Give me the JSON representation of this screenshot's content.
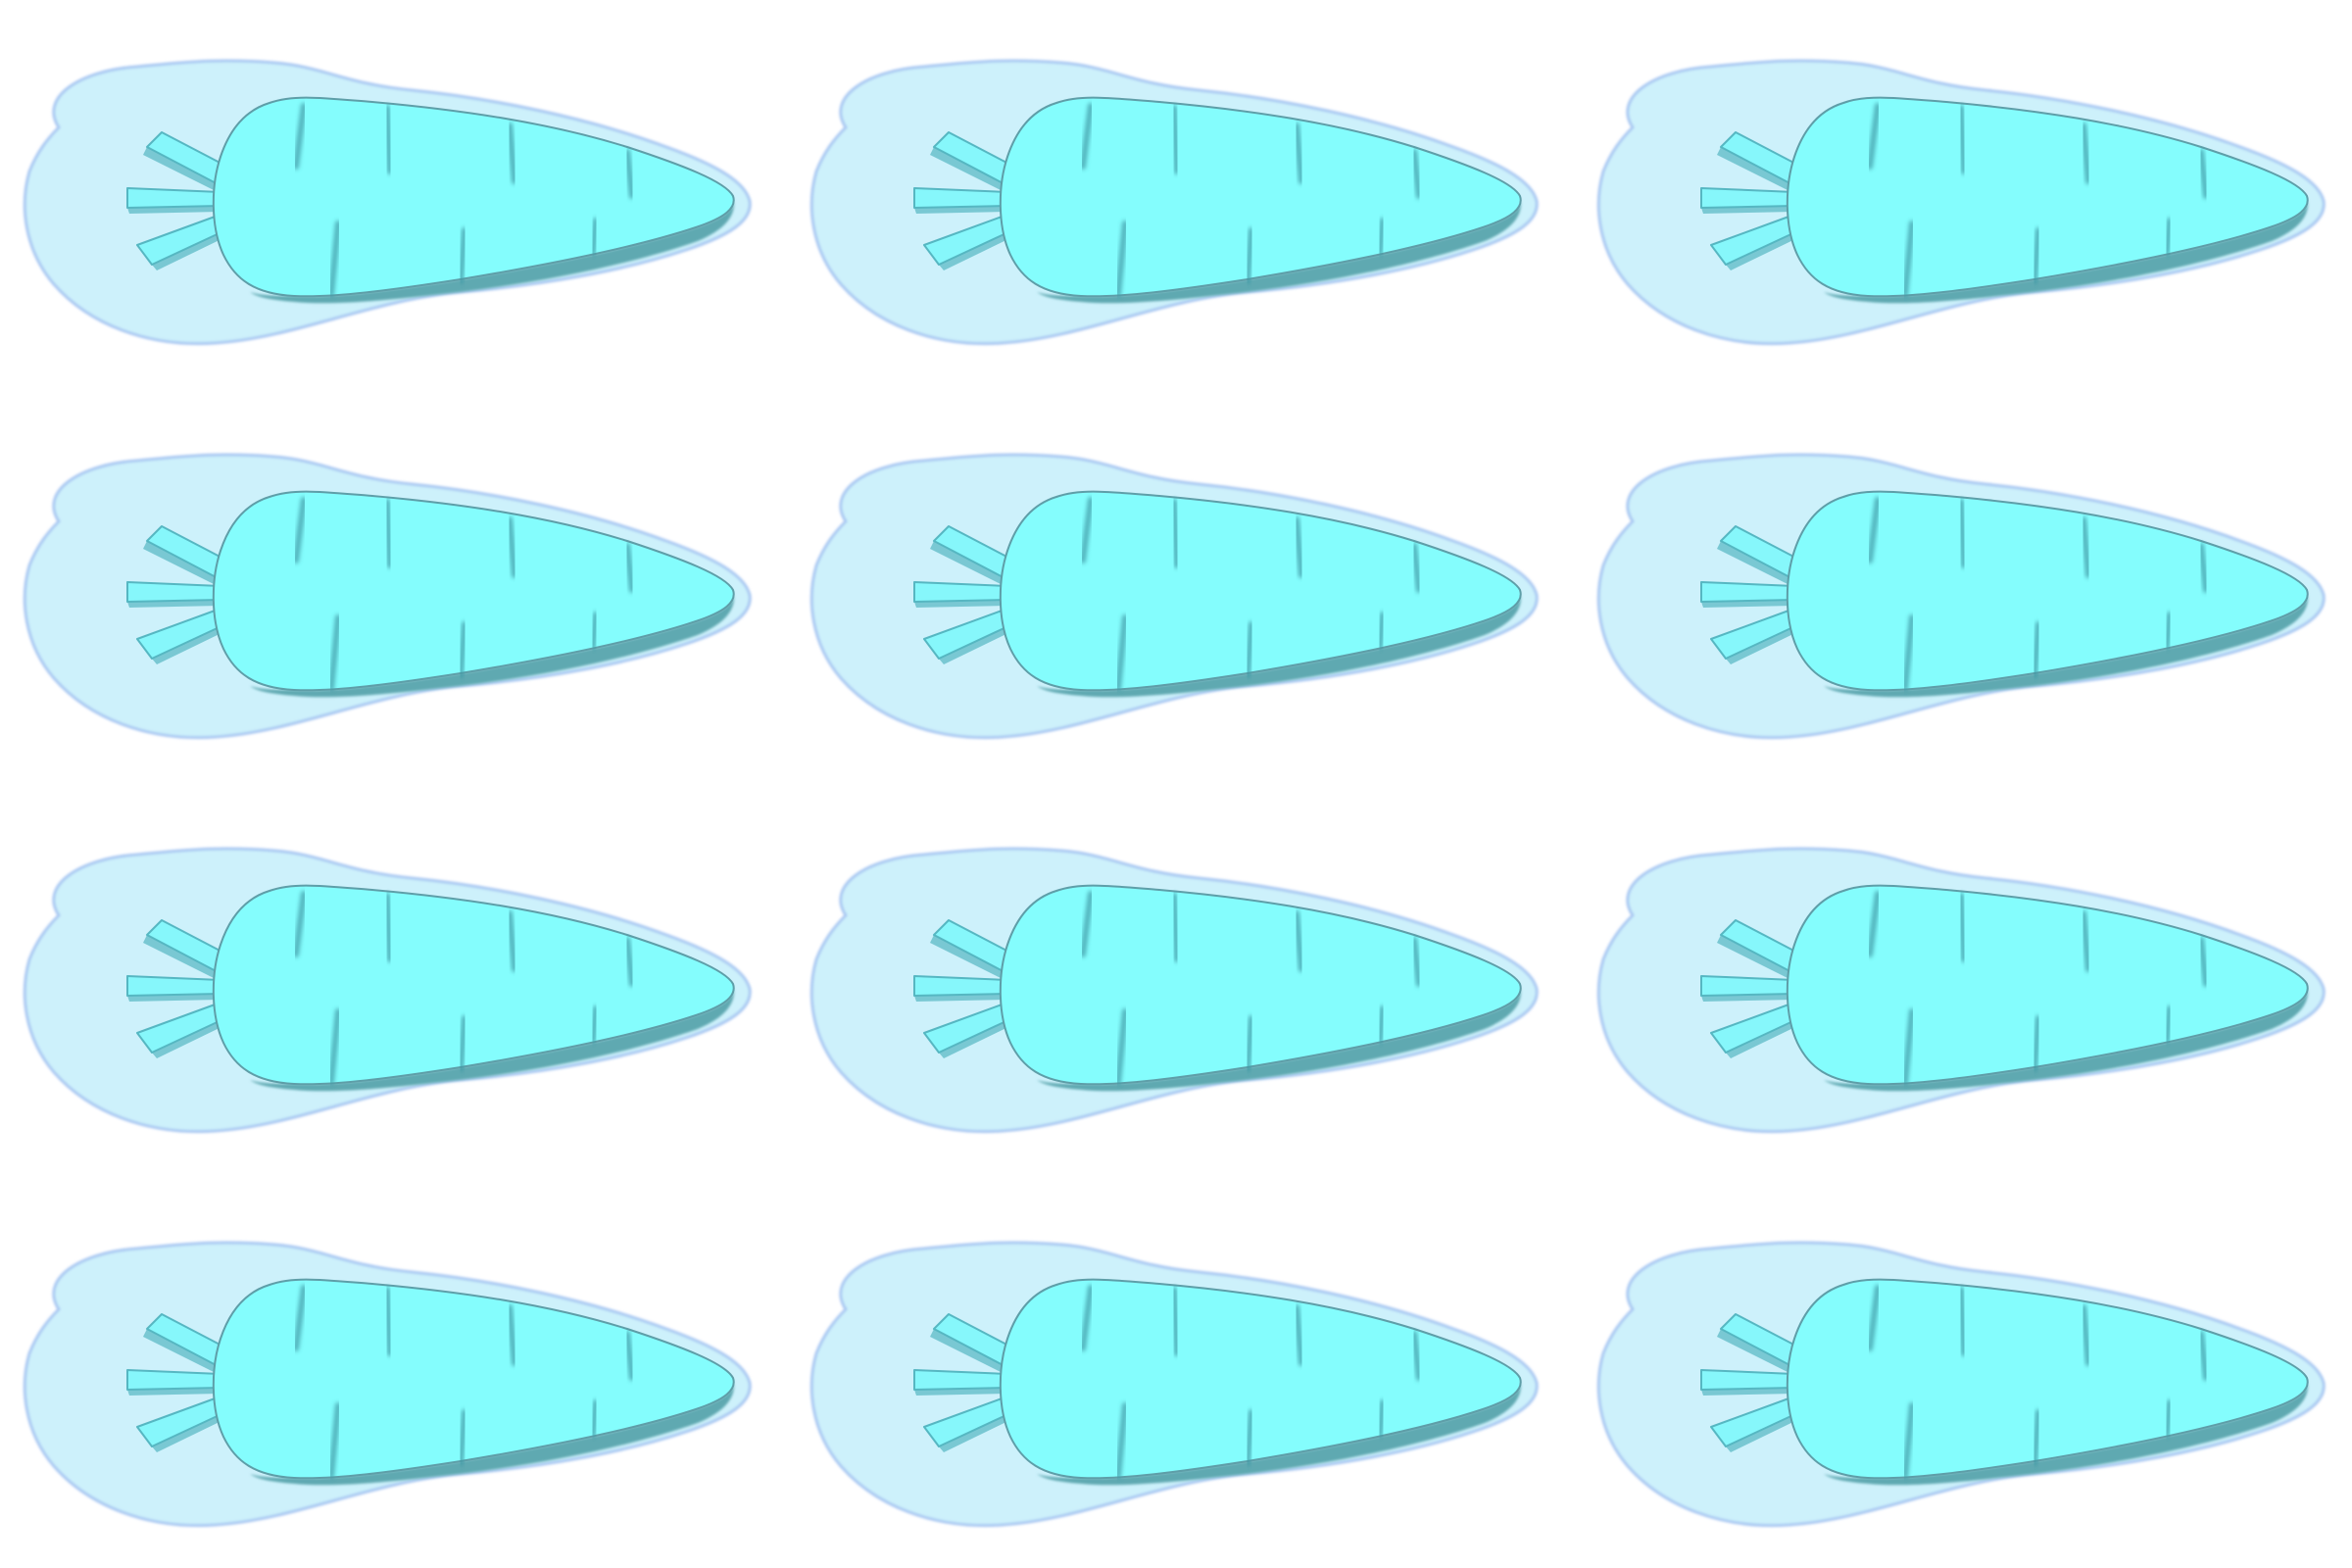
{
  "sheet": {
    "rows": 4,
    "cols": 3,
    "count": 12
  },
  "colors": {
    "background": "#ffffff",
    "halo": "#cdf1fb",
    "halo_edge": "#a9c8f2",
    "body": "#84fdfd",
    "body_shadow": "#5fa9b1",
    "body_outline": "#5e9ea8",
    "leaf": "#86f7fb",
    "leaf_shadow": "#56b7c2",
    "ridge": "#3f9aa6"
  },
  "icon": {
    "name": "carrot-icon",
    "ridge_count": 7,
    "leaf_count": 3
  }
}
